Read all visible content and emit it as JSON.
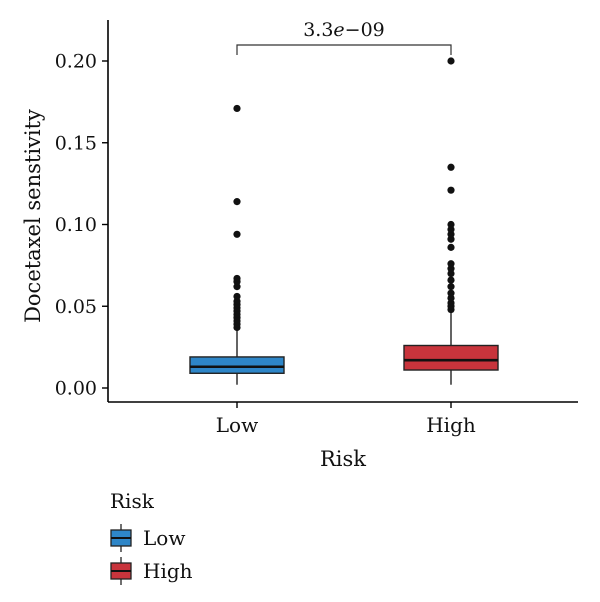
{
  "chart_data": {
    "type": "box",
    "title": "",
    "xlabel": "Risk",
    "ylabel": "Docetaxel senstivity",
    "ylim": [
      -0.01,
      0.22
    ],
    "yticks": [
      0.0,
      0.05,
      0.1,
      0.15,
      0.2
    ],
    "ytick_labels": [
      "0.00",
      "0.05",
      "0.10",
      "0.15",
      "0.20"
    ],
    "categories": [
      "Low",
      "High"
    ],
    "series": [
      {
        "name": "Low",
        "color": "#2E86C8",
        "whisker_low": 0.002,
        "q1": 0.009,
        "median": 0.013,
        "q3": 0.019,
        "whisker_high": 0.035,
        "outliers": [
          0.037,
          0.039,
          0.041,
          0.043,
          0.045,
          0.047,
          0.049,
          0.051,
          0.053,
          0.056,
          0.062,
          0.065,
          0.067,
          0.094,
          0.114,
          0.171
        ]
      },
      {
        "name": "High",
        "color": "#C8343C",
        "whisker_low": 0.002,
        "q1": 0.011,
        "median": 0.017,
        "q3": 0.026,
        "whisker_high": 0.046,
        "outliers": [
          0.048,
          0.05,
          0.052,
          0.055,
          0.058,
          0.062,
          0.066,
          0.07,
          0.073,
          0.076,
          0.086,
          0.091,
          0.094,
          0.097,
          0.1,
          0.121,
          0.135,
          0.2
        ]
      }
    ],
    "comparison": {
      "groups": [
        "Low",
        "High"
      ],
      "label_main": "3.3",
      "label_e": "e",
      "label_exp": "−09"
    },
    "legend": {
      "position": "bottom-left",
      "title": "Risk",
      "items": [
        "Low",
        "High"
      ]
    }
  }
}
